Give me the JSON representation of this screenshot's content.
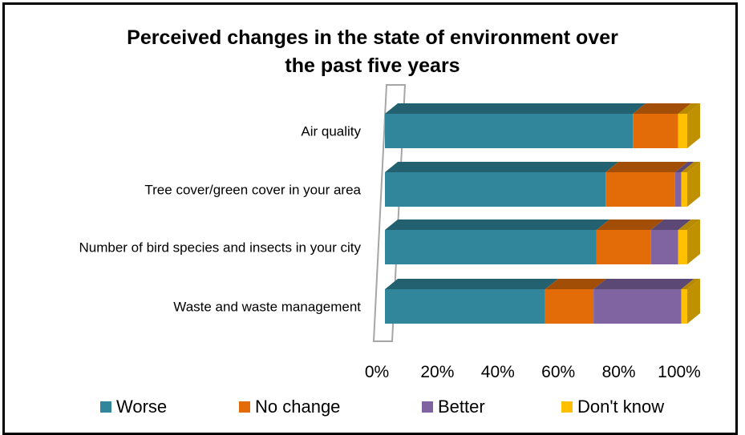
{
  "chart_data": {
    "type": "bar",
    "orientation": "horizontal",
    "stacked": "percent",
    "style": "3d",
    "title": "Perceived changes in the state of environment over the past five years",
    "title_lines": [
      "Perceived changes in the state of environment over",
      "the past five years"
    ],
    "categories": [
      "Air quality",
      "Tree cover/green cover in your area",
      "Number of bird species and insects in your city",
      "Waste and waste management"
    ],
    "series": [
      {
        "name": "Worse",
        "color": "#31869b",
        "values": [
          82,
          73,
          70,
          53
        ]
      },
      {
        "name": "No change",
        "color": "#e36c09",
        "values": [
          15,
          23,
          18,
          16
        ]
      },
      {
        "name": "Better",
        "color": "#8064a2",
        "values": [
          0,
          2,
          9,
          29
        ]
      },
      {
        "name": "Don't know",
        "color": "#ffc000",
        "values": [
          3,
          2,
          3,
          2
        ]
      }
    ],
    "x_ticks": [
      "0%",
      "20%",
      "40%",
      "60%",
      "80%",
      "100%"
    ],
    "xlim": [
      0,
      100
    ],
    "grid": false,
    "legend_position": "bottom"
  }
}
